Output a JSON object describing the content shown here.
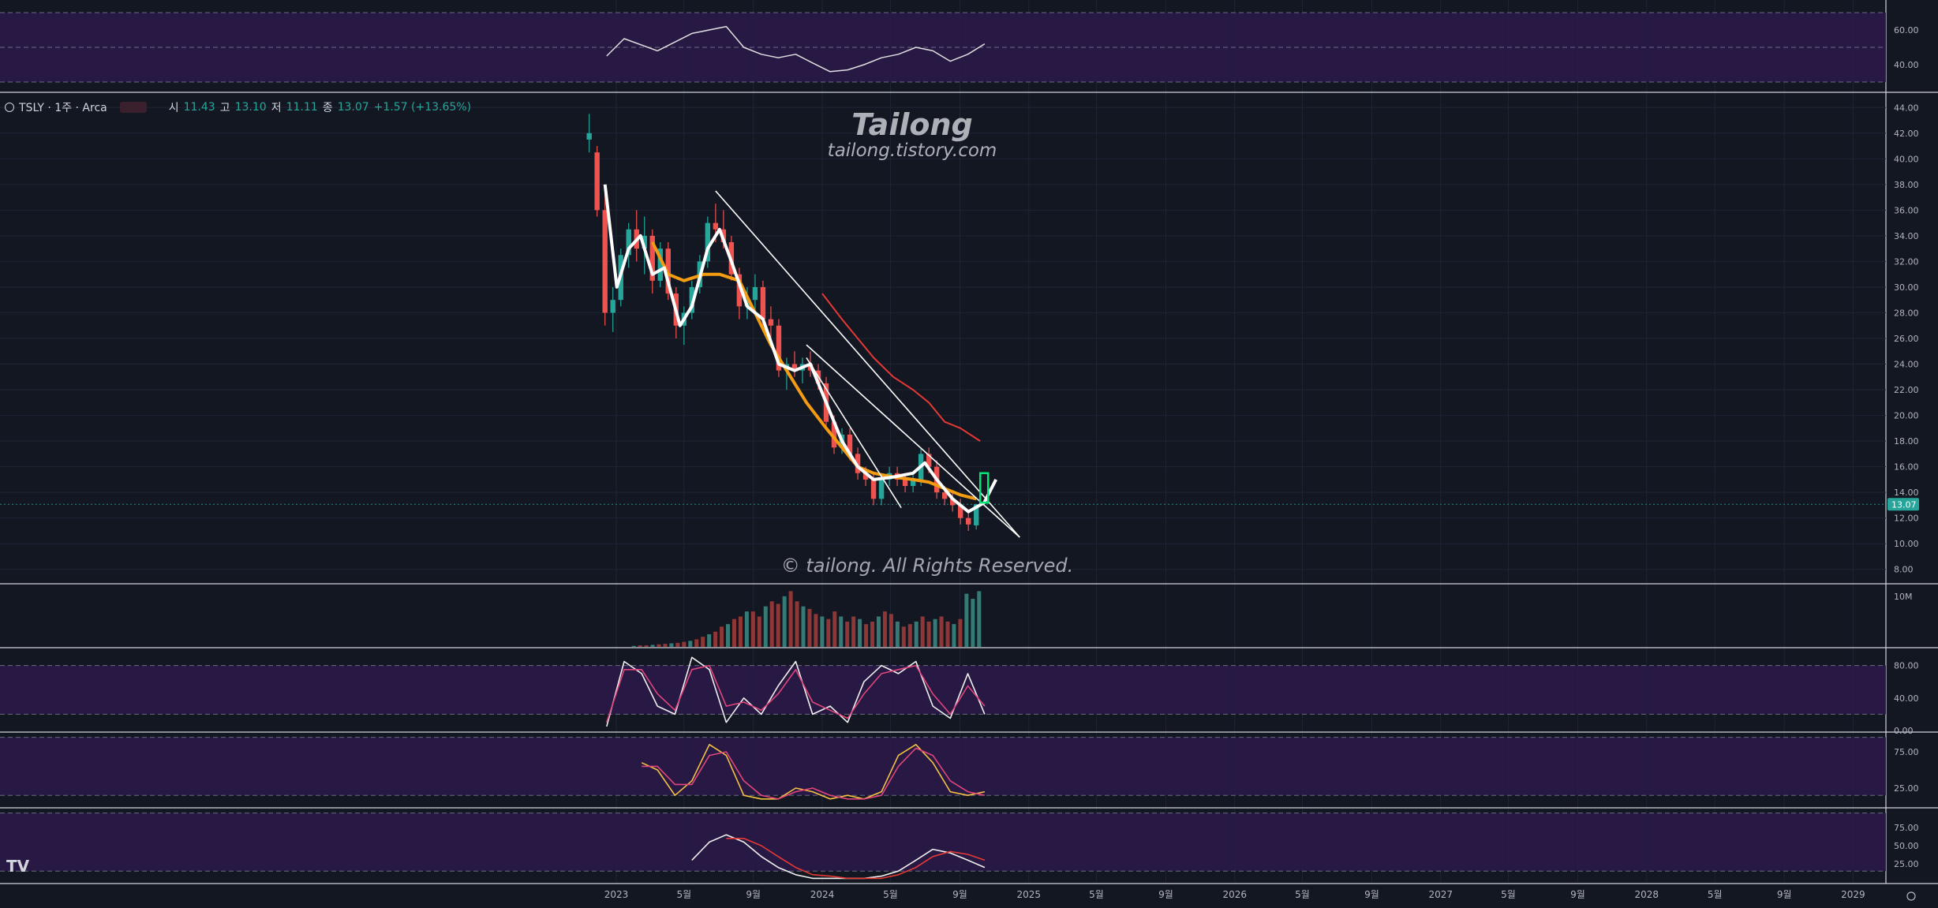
{
  "header": {
    "symbol": "TSLY · 1주 · Arca",
    "o_label": "시",
    "o": "11.43",
    "h_label": "고",
    "h": "13.10",
    "l_label": "저",
    "l": "11.11",
    "c_label": "종",
    "c": "13.07",
    "change": "+1.57 (+13.65%)"
  },
  "watermark": {
    "title": "Tailong",
    "site": "tailong.tistory.com",
    "copyright": "© tailong. All Rights Reserved."
  },
  "logo": "TV",
  "colors": {
    "background": "#131722",
    "up": "#26a69a",
    "down": "#ef5350",
    "ma_fast": "#ffffff",
    "ma_mid": "#f39c12",
    "ma_slow": "#e53935",
    "pane_fill": "#2b1a4a",
    "last_price_bg": "#26a69a",
    "highlight_box": "#00e676"
  },
  "chart_data": [
    {
      "type": "line",
      "pane": "rsi",
      "y_ticks": [
        "60.00",
        "40.00"
      ],
      "ylim": [
        25,
        75
      ],
      "x": [
        "2022-12",
        "2023-01",
        "2023-03",
        "2023-05",
        "2023-07",
        "2023-08",
        "2023-09",
        "2023-10",
        "2023-11",
        "2023-12",
        "2024-01",
        "2024-02",
        "2024-03",
        "2024-04",
        "2024-05",
        "2024-06",
        "2024-07",
        "2024-08",
        "2024-09",
        "2024-10"
      ],
      "series": [
        {
          "values": [
            45,
            55,
            48,
            58,
            62,
            50,
            46,
            44,
            46,
            41,
            36,
            37,
            40,
            44,
            46,
            50,
            48,
            42,
            46,
            52
          ]
        }
      ]
    },
    {
      "type": "candlestick",
      "pane": "price",
      "title": "TSLY",
      "y_ticks": [
        "44.00",
        "42.00",
        "40.00",
        "38.00",
        "36.00",
        "34.00",
        "32.00",
        "30.00",
        "28.00",
        "26.00",
        "24.00",
        "22.00",
        "20.00",
        "18.00",
        "16.00",
        "14.00",
        "12.00",
        "10.00",
        "8.00"
      ],
      "ylim": [
        7,
        45
      ],
      "x_ticks": [
        "2023",
        "5월",
        "9월",
        "2024",
        "5월",
        "9월",
        "2025",
        "5월",
        "9월",
        "2026",
        "5월",
        "9월",
        "2027",
        "5월",
        "9월",
        "2028",
        "5월",
        "9월",
        "2029"
      ],
      "last_price": "13.07",
      "ohlc": [
        {
          "t": "2022-11-14",
          "o": 41.5,
          "h": 43.5,
          "l": 40.5,
          "c": 42.0
        },
        {
          "t": "2022-11-28",
          "o": 40.5,
          "h": 41.0,
          "l": 35.5,
          "c": 36.0
        },
        {
          "t": "2022-12-12",
          "o": 36.0,
          "h": 37.5,
          "l": 27.0,
          "c": 28.0
        },
        {
          "t": "2022-12-26",
          "o": 28.0,
          "h": 30.0,
          "l": 26.5,
          "c": 29.0
        },
        {
          "t": "2023-01-09",
          "o": 29.0,
          "h": 33.0,
          "l": 28.5,
          "c": 32.5
        },
        {
          "t": "2023-01-23",
          "o": 32.5,
          "h": 35.0,
          "l": 31.5,
          "c": 34.5
        },
        {
          "t": "2023-02-06",
          "o": 34.5,
          "h": 36.0,
          "l": 32.0,
          "c": 33.0
        },
        {
          "t": "2023-02-20",
          "o": 33.0,
          "h": 35.5,
          "l": 31.0,
          "c": 34.0
        },
        {
          "t": "2023-03-06",
          "o": 34.0,
          "h": 34.5,
          "l": 29.5,
          "c": 30.5
        },
        {
          "t": "2023-03-20",
          "o": 30.5,
          "h": 33.5,
          "l": 30.0,
          "c": 33.0
        },
        {
          "t": "2023-04-03",
          "o": 33.0,
          "h": 33.5,
          "l": 29.0,
          "c": 29.5
        },
        {
          "t": "2023-04-17",
          "o": 29.5,
          "h": 30.0,
          "l": 26.0,
          "c": 27.0
        },
        {
          "t": "2023-05-01",
          "o": 27.0,
          "h": 28.5,
          "l": 25.5,
          "c": 28.0
        },
        {
          "t": "2023-05-15",
          "o": 28.0,
          "h": 30.5,
          "l": 27.5,
          "c": 30.0
        },
        {
          "t": "2023-05-29",
          "o": 30.0,
          "h": 32.5,
          "l": 29.5,
          "c": 32.0
        },
        {
          "t": "2023-06-12",
          "o": 32.0,
          "h": 35.5,
          "l": 31.5,
          "c": 35.0
        },
        {
          "t": "2023-06-26",
          "o": 35.0,
          "h": 36.5,
          "l": 33.5,
          "c": 34.5
        },
        {
          "t": "2023-07-10",
          "o": 34.5,
          "h": 36.0,
          "l": 33.0,
          "c": 33.5
        },
        {
          "t": "2023-07-24",
          "o": 33.5,
          "h": 34.0,
          "l": 30.5,
          "c": 31.0
        },
        {
          "t": "2023-08-07",
          "o": 31.0,
          "h": 31.5,
          "l": 27.5,
          "c": 28.5
        },
        {
          "t": "2023-08-21",
          "o": 28.5,
          "h": 30.0,
          "l": 27.5,
          "c": 29.0
        },
        {
          "t": "2023-09-04",
          "o": 29.0,
          "h": 31.0,
          "l": 28.0,
          "c": 30.0
        },
        {
          "t": "2023-09-18",
          "o": 30.0,
          "h": 30.5,
          "l": 27.0,
          "c": 27.5
        },
        {
          "t": "2023-10-02",
          "o": 27.5,
          "h": 28.5,
          "l": 26.0,
          "c": 27.0
        },
        {
          "t": "2023-10-16",
          "o": 27.0,
          "h": 27.5,
          "l": 23.0,
          "c": 23.5
        },
        {
          "t": "2023-10-30",
          "o": 23.5,
          "h": 24.5,
          "l": 22.0,
          "c": 24.0
        },
        {
          "t": "2023-11-13",
          "o": 24.0,
          "h": 25.0,
          "l": 23.0,
          "c": 23.5
        },
        {
          "t": "2023-11-27",
          "o": 23.5,
          "h": 24.5,
          "l": 22.5,
          "c": 24.0
        },
        {
          "t": "2023-12-11",
          "o": 24.0,
          "h": 25.0,
          "l": 23.0,
          "c": 23.5
        },
        {
          "t": "2023-12-25",
          "o": 23.5,
          "h": 24.0,
          "l": 22.0,
          "c": 22.5
        },
        {
          "t": "2024-01-08",
          "o": 22.5,
          "h": 23.0,
          "l": 19.0,
          "c": 19.5
        },
        {
          "t": "2024-01-22",
          "o": 19.5,
          "h": 20.0,
          "l": 17.0,
          "c": 17.5
        },
        {
          "t": "2024-02-05",
          "o": 17.5,
          "h": 19.0,
          "l": 17.0,
          "c": 18.5
        },
        {
          "t": "2024-02-19",
          "o": 18.5,
          "h": 19.0,
          "l": 16.5,
          "c": 17.0
        },
        {
          "t": "2024-03-04",
          "o": 17.0,
          "h": 17.5,
          "l": 15.0,
          "c": 15.5
        },
        {
          "t": "2024-03-18",
          "o": 15.5,
          "h": 16.0,
          "l": 14.5,
          "c": 15.0
        },
        {
          "t": "2024-04-01",
          "o": 15.0,
          "h": 15.5,
          "l": 13.0,
          "c": 13.5
        },
        {
          "t": "2024-04-15",
          "o": 13.5,
          "h": 15.5,
          "l": 13.0,
          "c": 15.0
        },
        {
          "t": "2024-04-29",
          "o": 15.0,
          "h": 16.0,
          "l": 14.5,
          "c": 15.5
        },
        {
          "t": "2024-05-13",
          "o": 15.5,
          "h": 16.0,
          "l": 14.5,
          "c": 15.0
        },
        {
          "t": "2024-05-27",
          "o": 15.0,
          "h": 15.5,
          "l": 14.0,
          "c": 14.5
        },
        {
          "t": "2024-06-10",
          "o": 14.5,
          "h": 15.5,
          "l": 14.0,
          "c": 15.0
        },
        {
          "t": "2024-06-24",
          "o": 15.0,
          "h": 17.5,
          "l": 14.5,
          "c": 17.0
        },
        {
          "t": "2024-07-08",
          "o": 17.0,
          "h": 17.5,
          "l": 15.5,
          "c": 16.0
        },
        {
          "t": "2024-07-22",
          "o": 16.0,
          "h": 16.5,
          "l": 13.5,
          "c": 14.0
        },
        {
          "t": "2024-08-05",
          "o": 14.0,
          "h": 14.5,
          "l": 13.0,
          "c": 13.5
        },
        {
          "t": "2024-08-19",
          "o": 13.5,
          "h": 14.0,
          "l": 12.5,
          "c": 13.0
        },
        {
          "t": "2024-09-02",
          "o": 13.0,
          "h": 13.5,
          "l": 11.5,
          "c": 12.0
        },
        {
          "t": "2024-09-16",
          "o": 12.0,
          "h": 12.5,
          "l": 11.0,
          "c": 11.5
        },
        {
          "t": "2024-09-30",
          "o": 11.43,
          "h": 13.1,
          "l": 11.11,
          "c": 13.07
        }
      ],
      "ma_fast": [
        {
          "t": "2022-12-12",
          "v": 38
        },
        {
          "t": "2023-01-02",
          "v": 30
        },
        {
          "t": "2023-01-23",
          "v": 33
        },
        {
          "t": "2023-02-13",
          "v": 34
        },
        {
          "t": "2023-03-06",
          "v": 31
        },
        {
          "t": "2023-03-27",
          "v": 31.5
        },
        {
          "t": "2023-04-24",
          "v": 27
        },
        {
          "t": "2023-05-15",
          "v": 28.5
        },
        {
          "t": "2023-06-12",
          "v": 33
        },
        {
          "t": "2023-07-03",
          "v": 34.5
        },
        {
          "t": "2023-07-24",
          "v": 32
        },
        {
          "t": "2023-08-21",
          "v": 28.5
        },
        {
          "t": "2023-09-18",
          "v": 27.5
        },
        {
          "t": "2023-10-16",
          "v": 24
        },
        {
          "t": "2023-11-13",
          "v": 23.5
        },
        {
          "t": "2023-12-11",
          "v": 24
        },
        {
          "t": "2024-01-08",
          "v": 21
        },
        {
          "t": "2024-02-05",
          "v": 18
        },
        {
          "t": "2024-03-04",
          "v": 16
        },
        {
          "t": "2024-04-01",
          "v": 15
        },
        {
          "t": "2024-05-06",
          "v": 15.2
        },
        {
          "t": "2024-06-10",
          "v": 15.5
        },
        {
          "t": "2024-07-01",
          "v": 16.3
        },
        {
          "t": "2024-07-22",
          "v": 15
        },
        {
          "t": "2024-08-19",
          "v": 13.5
        },
        {
          "t": "2024-09-16",
          "v": 12.5
        },
        {
          "t": "2024-10-14",
          "v": 13.2
        },
        {
          "t": "2024-11-04",
          "v": 15
        }
      ],
      "ma_mid": [
        {
          "t": "2023-03-06",
          "v": 33.5
        },
        {
          "t": "2023-04-03",
          "v": 31
        },
        {
          "t": "2023-05-01",
          "v": 30.5
        },
        {
          "t": "2023-06-05",
          "v": 31
        },
        {
          "t": "2023-07-03",
          "v": 31
        },
        {
          "t": "2023-08-07",
          "v": 30.5
        },
        {
          "t": "2023-09-04",
          "v": 28
        },
        {
          "t": "2023-10-02",
          "v": 25.5
        },
        {
          "t": "2023-11-06",
          "v": 23
        },
        {
          "t": "2023-12-04",
          "v": 21
        },
        {
          "t": "2024-01-08",
          "v": 19
        },
        {
          "t": "2024-02-05",
          "v": 17.5
        },
        {
          "t": "2024-03-04",
          "v": 16
        },
        {
          "t": "2024-04-01",
          "v": 15.5
        },
        {
          "t": "2024-05-06",
          "v": 15.2
        },
        {
          "t": "2024-06-10",
          "v": 15
        },
        {
          "t": "2024-07-08",
          "v": 14.8
        },
        {
          "t": "2024-08-05",
          "v": 14.3
        },
        {
          "t": "2024-09-02",
          "v": 13.8
        },
        {
          "t": "2024-09-30",
          "v": 13.5
        }
      ],
      "ma_slow": [
        {
          "t": "2024-01-01",
          "v": 29.5
        },
        {
          "t": "2024-02-05",
          "v": 27.5
        },
        {
          "t": "2024-03-04",
          "v": 26
        },
        {
          "t": "2024-04-01",
          "v": 24.5
        },
        {
          "t": "2024-05-06",
          "v": 23
        },
        {
          "t": "2024-06-10",
          "v": 22
        },
        {
          "t": "2024-07-08",
          "v": 21
        },
        {
          "t": "2024-08-05",
          "v": 19.5
        },
        {
          "t": "2024-09-02",
          "v": 19
        },
        {
          "t": "2024-10-07",
          "v": 18
        }
      ],
      "trendlines": [
        {
          "from": {
            "t": "2023-06-26",
            "v": 37.5
          },
          "to": {
            "t": "2024-12-16",
            "v": 10.5
          }
        },
        {
          "from": {
            "t": "2023-12-04",
            "v": 25.5
          },
          "to": {
            "t": "2024-12-16",
            "v": 10.5
          }
        },
        {
          "from": {
            "t": "2023-12-04",
            "v": 24.5
          },
          "to": {
            "t": "2024-05-20",
            "v": 12.8
          }
        }
      ],
      "highlight_box": {
        "t_from": "2024-10-07",
        "t_to": "2024-10-21",
        "v_from": 13.2,
        "v_to": 15.5
      }
    },
    {
      "type": "bar",
      "pane": "volume",
      "y_ticks": [
        "10M"
      ],
      "ylim": [
        0,
        12
      ],
      "values": [
        0.2,
        0.3,
        0.3,
        0.4,
        0.5,
        0.6,
        0.7,
        0.8,
        1,
        1.2,
        1.5,
        2,
        2.5,
        3,
        4,
        4.5,
        5.5,
        6,
        7,
        7,
        6,
        8,
        9,
        8.5,
        10,
        11,
        9,
        8,
        7.5,
        6.5,
        6,
        5.5,
        7,
        6,
        5,
        6,
        5.5,
        4.5,
        5,
        6,
        7,
        6.5,
        5,
        4,
        4.5,
        5,
        6,
        5,
        5.5,
        6,
        5,
        4.5,
        5.5,
        10.5,
        9.5,
        11
      ]
    },
    {
      "type": "line",
      "pane": "stochastic",
      "y_ticks": [
        "80.00",
        "40.00",
        "0.00"
      ],
      "ylim": [
        0,
        100
      ],
      "x": [
        "2022-12",
        "2023-01",
        "2023-02",
        "2023-03",
        "2023-04",
        "2023-05",
        "2023-06",
        "2023-07",
        "2023-08",
        "2023-09",
        "2023-10",
        "2023-11",
        "2023-12",
        "2024-01",
        "2024-02",
        "2024-03",
        "2024-04",
        "2024-05",
        "2024-06",
        "2024-07",
        "2024-08",
        "2024-09",
        "2024-10"
      ],
      "series": [
        {
          "values": [
            5,
            85,
            70,
            30,
            20,
            90,
            75,
            10,
            40,
            20,
            55,
            85,
            20,
            30,
            10,
            60,
            80,
            70,
            85,
            30,
            15,
            70,
            20
          ]
        },
        {
          "values": [
            10,
            75,
            75,
            45,
            25,
            75,
            80,
            30,
            35,
            25,
            45,
            75,
            35,
            25,
            15,
            45,
            70,
            75,
            80,
            45,
            20,
            55,
            30
          ]
        }
      ]
    },
    {
      "type": "line",
      "pane": "stoch_rsi",
      "y_ticks": [
        "75.00",
        "25.00"
      ],
      "ylim": [
        0,
        100
      ],
      "x": [
        "2023-02",
        "2023-03",
        "2023-04",
        "2023-05",
        "2023-06",
        "2023-07",
        "2023-08",
        "2023-09",
        "2023-10",
        "2023-11",
        "2023-12",
        "2024-01",
        "2024-02",
        "2024-03",
        "2024-04",
        "2024-05",
        "2024-06",
        "2024-07",
        "2024-08",
        "2024-09",
        "2024-10"
      ],
      "series": [
        {
          "values": [
            60,
            50,
            15,
            35,
            85,
            70,
            15,
            10,
            10,
            25,
            20,
            10,
            15,
            10,
            20,
            70,
            85,
            60,
            20,
            15,
            20
          ]
        },
        {
          "values": [
            55,
            55,
            30,
            30,
            70,
            75,
            35,
            15,
            10,
            20,
            25,
            15,
            10,
            10,
            15,
            55,
            80,
            70,
            35,
            20,
            15
          ]
        }
      ]
    },
    {
      "type": "line",
      "pane": "oscillator",
      "y_ticks": [
        "75.00",
        "50.00",
        "25.00"
      ],
      "ylim": [
        0,
        100
      ],
      "x": [
        "2023-05",
        "2023-06",
        "2023-07",
        "2023-08",
        "2023-09",
        "2023-10",
        "2023-11",
        "2023-12",
        "2024-01",
        "2024-02",
        "2024-03",
        "2024-04",
        "2024-05",
        "2024-06",
        "2024-07",
        "2024-08",
        "2024-09",
        "2024-10"
      ],
      "series": [
        {
          "values": [
            30,
            55,
            65,
            55,
            35,
            20,
            10,
            5,
            5,
            5,
            5,
            8,
            15,
            30,
            45,
            40,
            30,
            20
          ]
        },
        {
          "values": [
            null,
            null,
            60,
            60,
            50,
            35,
            20,
            10,
            8,
            5,
            5,
            5,
            10,
            20,
            35,
            42,
            38,
            30
          ]
        }
      ]
    }
  ]
}
